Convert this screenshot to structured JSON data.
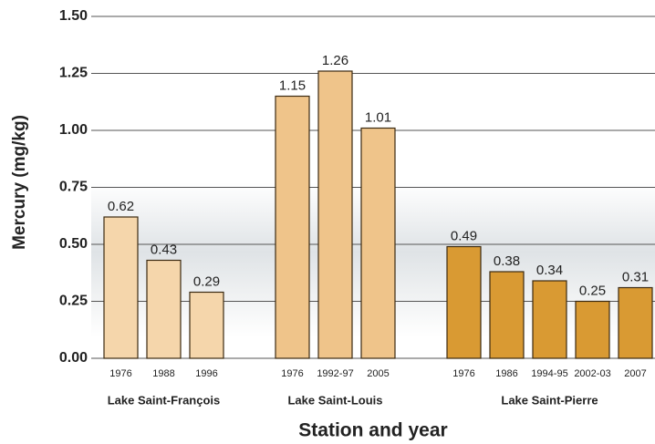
{
  "chart_data": {
    "type": "bar",
    "y_label": "Mercury (mg/kg)",
    "x_label": "Station and year",
    "ylim": [
      0,
      1.5
    ],
    "yticks": [
      {
        "value": 0,
        "label": "0.00"
      },
      {
        "value": 0.25,
        "label": "0.25"
      },
      {
        "value": 0.5,
        "label": "0.50"
      },
      {
        "value": 0.75,
        "label": "0.75"
      },
      {
        "value": 1,
        "label": "1.00"
      },
      {
        "value": 1.25,
        "label": "1.25"
      },
      {
        "value": 1.5,
        "label": "1.50"
      }
    ],
    "grid": true,
    "groups": [
      {
        "name": "Lake Saint-François",
        "color": "#f5d6ab",
        "categories": [
          "1976",
          "1988",
          "1996"
        ],
        "values": [
          0.62,
          0.43,
          0.29
        ]
      },
      {
        "name": "Lake Saint-Louis",
        "color": "#efc48a",
        "categories": [
          "1976",
          "1992-97",
          "2005"
        ],
        "values": [
          1.15,
          1.26,
          1.01
        ]
      },
      {
        "name": "Lake Saint-Pierre",
        "color": "#d99a33",
        "categories": [
          "1976",
          "1986",
          "1994-95",
          "2002-03",
          "2007"
        ],
        "values": [
          0.49,
          0.38,
          0.34,
          0.25,
          0.31
        ]
      }
    ]
  }
}
